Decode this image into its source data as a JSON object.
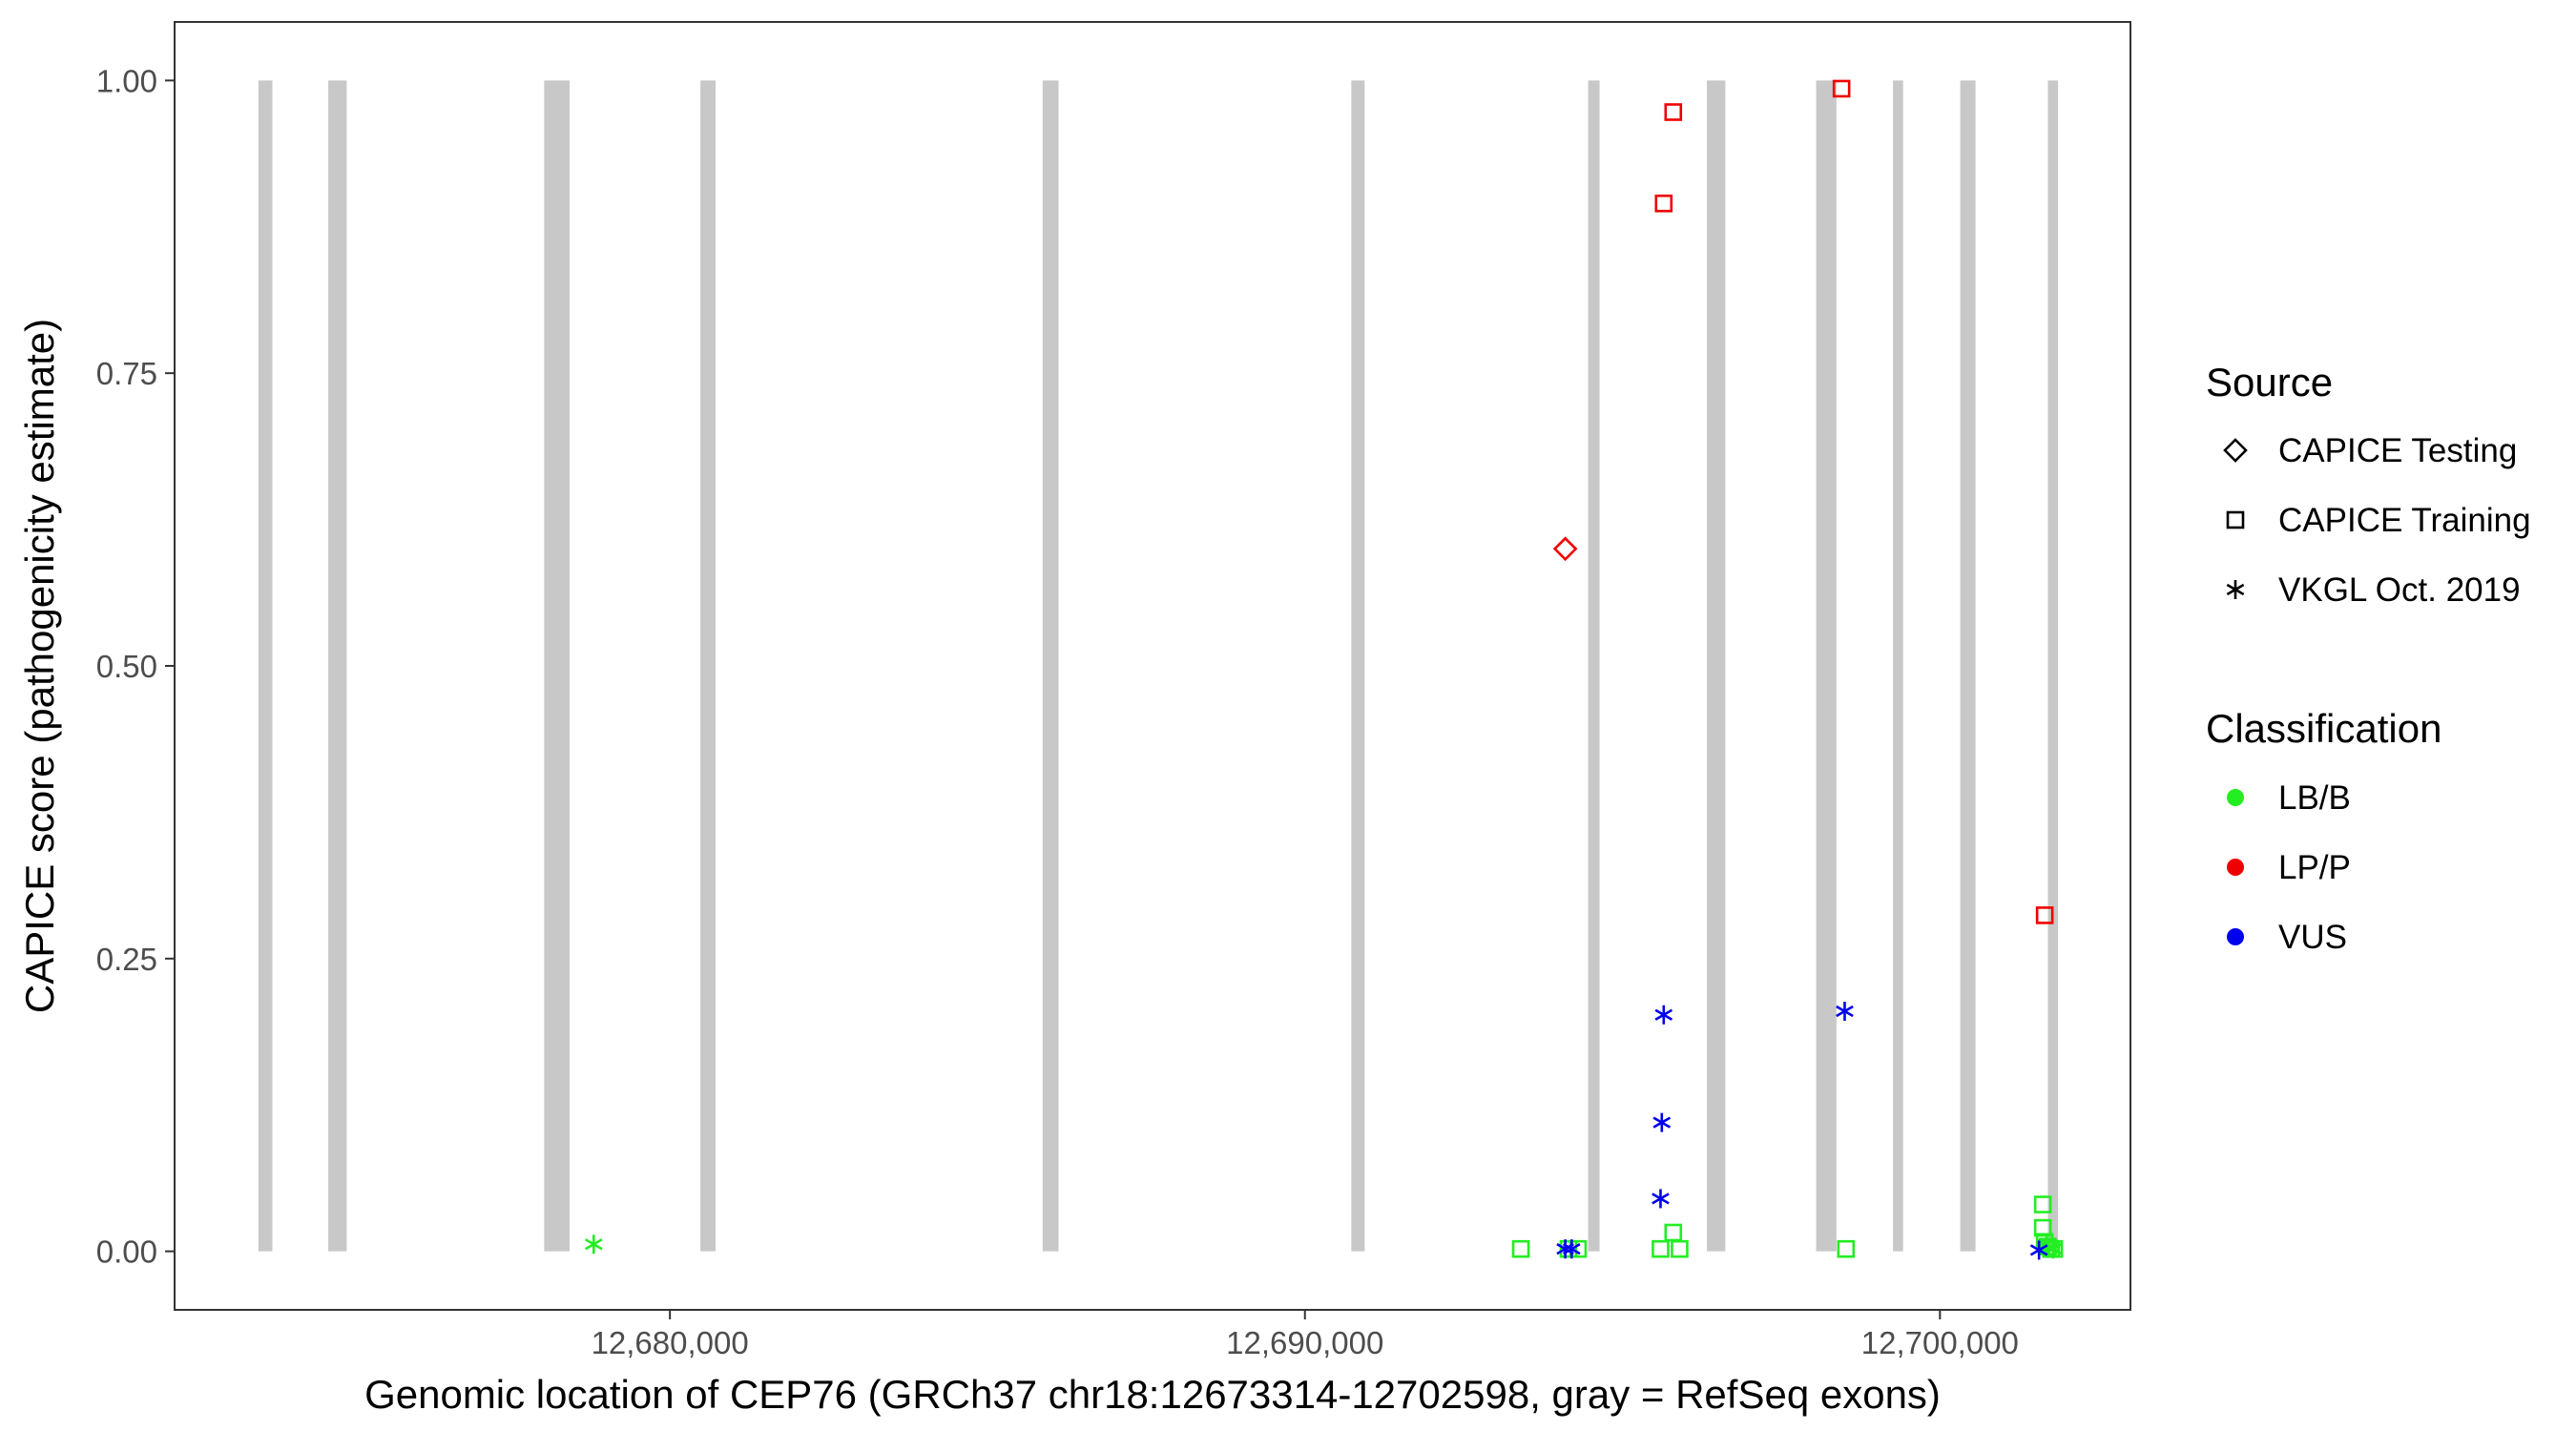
{
  "chart_data": {
    "type": "scatter",
    "xlabel": "Genomic location of CEP76 (GRCh37 chr18:12673314-12702598, gray = RefSeq exons)",
    "ylabel": "CAPICE score (pathogenicity estimate)",
    "xlim": [
      12672200,
      12703000
    ],
    "ylim": [
      -0.05,
      1.05
    ],
    "x_ticks": [
      12680000,
      12690000,
      12700000
    ],
    "x_tick_labels": [
      "12,680,000",
      "12,690,000",
      "12,700,000"
    ],
    "y_ticks": [
      0,
      0.25,
      0.5,
      0.75,
      1.0
    ],
    "y_tick_labels": [
      "0.00",
      "0.25",
      "0.50",
      "0.75",
      "1.00"
    ],
    "grid": false,
    "exons": [
      [
        12673520,
        12673740
      ],
      [
        12674620,
        12674910
      ],
      [
        12678020,
        12678420
      ],
      [
        12680480,
        12680720
      ],
      [
        12685870,
        12686120
      ],
      [
        12690730,
        12690940
      ],
      [
        12694460,
        12694640
      ],
      [
        12696330,
        12696620
      ],
      [
        12698050,
        12698370
      ],
      [
        12699260,
        12699420
      ],
      [
        12700320,
        12700560
      ],
      [
        12701700,
        12701860
      ]
    ],
    "legend_position": "right",
    "legend_source_title": "Source",
    "legend_source": [
      {
        "label": "CAPICE Testing",
        "shape": "diamond"
      },
      {
        "label": "CAPICE Training",
        "shape": "square"
      },
      {
        "label": "VKGL Oct. 2019",
        "shape": "asterisk"
      }
    ],
    "legend_class_title": "Classification",
    "legend_class": [
      {
        "label": "LB/B",
        "color": "#22ee22"
      },
      {
        "label": "LP/P",
        "color": "#ee0000"
      },
      {
        "label": "VUS",
        "color": "#0000ee"
      }
    ],
    "points": [
      {
        "x": 12678800,
        "y": 0.006,
        "source": "VKGL Oct. 2019",
        "class": "LB/B"
      },
      {
        "x": 12693400,
        "y": 0.002,
        "source": "CAPICE Training",
        "class": "LB/B"
      },
      {
        "x": 12694150,
        "y": 0.002,
        "source": "CAPICE Training",
        "class": "LB/B"
      },
      {
        "x": 12694300,
        "y": 0.002,
        "source": "CAPICE Training",
        "class": "LB/B"
      },
      {
        "x": 12694100,
        "y": 0.6,
        "source": "CAPICE Testing",
        "class": "LP/P"
      },
      {
        "x": 12694100,
        "y": 0.002,
        "source": "VKGL Oct. 2019",
        "class": "VUS"
      },
      {
        "x": 12694200,
        "y": 0.002,
        "source": "VKGL Oct. 2019",
        "class": "VUS"
      },
      {
        "x": 12695600,
        "y": 0.002,
        "source": "CAPICE Training",
        "class": "LB/B"
      },
      {
        "x": 12695800,
        "y": 0.016,
        "source": "CAPICE Training",
        "class": "LB/B"
      },
      {
        "x": 12695900,
        "y": 0.002,
        "source": "CAPICE Training",
        "class": "LB/B"
      },
      {
        "x": 12695650,
        "y": 0.895,
        "source": "CAPICE Training",
        "class": "LP/P"
      },
      {
        "x": 12695800,
        "y": 0.973,
        "source": "CAPICE Training",
        "class": "LP/P"
      },
      {
        "x": 12695650,
        "y": 0.202,
        "source": "VKGL Oct. 2019",
        "class": "VUS"
      },
      {
        "x": 12695620,
        "y": 0.11,
        "source": "VKGL Oct. 2019",
        "class": "VUS"
      },
      {
        "x": 12695600,
        "y": 0.045,
        "source": "VKGL Oct. 2019",
        "class": "VUS"
      },
      {
        "x": 12698450,
        "y": 0.993,
        "source": "CAPICE Training",
        "class": "LP/P"
      },
      {
        "x": 12698500,
        "y": 0.205,
        "source": "VKGL Oct. 2019",
        "class": "VUS"
      },
      {
        "x": 12698520,
        "y": 0.002,
        "source": "CAPICE Training",
        "class": "LB/B"
      },
      {
        "x": 12701650,
        "y": 0.287,
        "source": "CAPICE Training",
        "class": "LP/P"
      },
      {
        "x": 12701620,
        "y": 0.04,
        "source": "CAPICE Training",
        "class": "LB/B"
      },
      {
        "x": 12701620,
        "y": 0.02,
        "source": "CAPICE Training",
        "class": "LB/B"
      },
      {
        "x": 12701650,
        "y": 0.008,
        "source": "CAPICE Training",
        "class": "LB/B"
      },
      {
        "x": 12701700,
        "y": 0.004,
        "source": "CAPICE Training",
        "class": "LB/B"
      },
      {
        "x": 12701750,
        "y": 0.002,
        "source": "CAPICE Training",
        "class": "LB/B"
      },
      {
        "x": 12701800,
        "y": 0.002,
        "source": "CAPICE Training",
        "class": "LB/B"
      },
      {
        "x": 12701680,
        "y": 0.006,
        "source": "VKGL Oct. 2019",
        "class": "LB/B"
      },
      {
        "x": 12701720,
        "y": 0.003,
        "source": "VKGL Oct. 2019",
        "class": "LB/B"
      },
      {
        "x": 12701780,
        "y": 0.002,
        "source": "VKGL Oct. 2019",
        "class": "LB/B"
      },
      {
        "x": 12701560,
        "y": 0.001,
        "source": "VKGL Oct. 2019",
        "class": "VUS"
      }
    ]
  }
}
